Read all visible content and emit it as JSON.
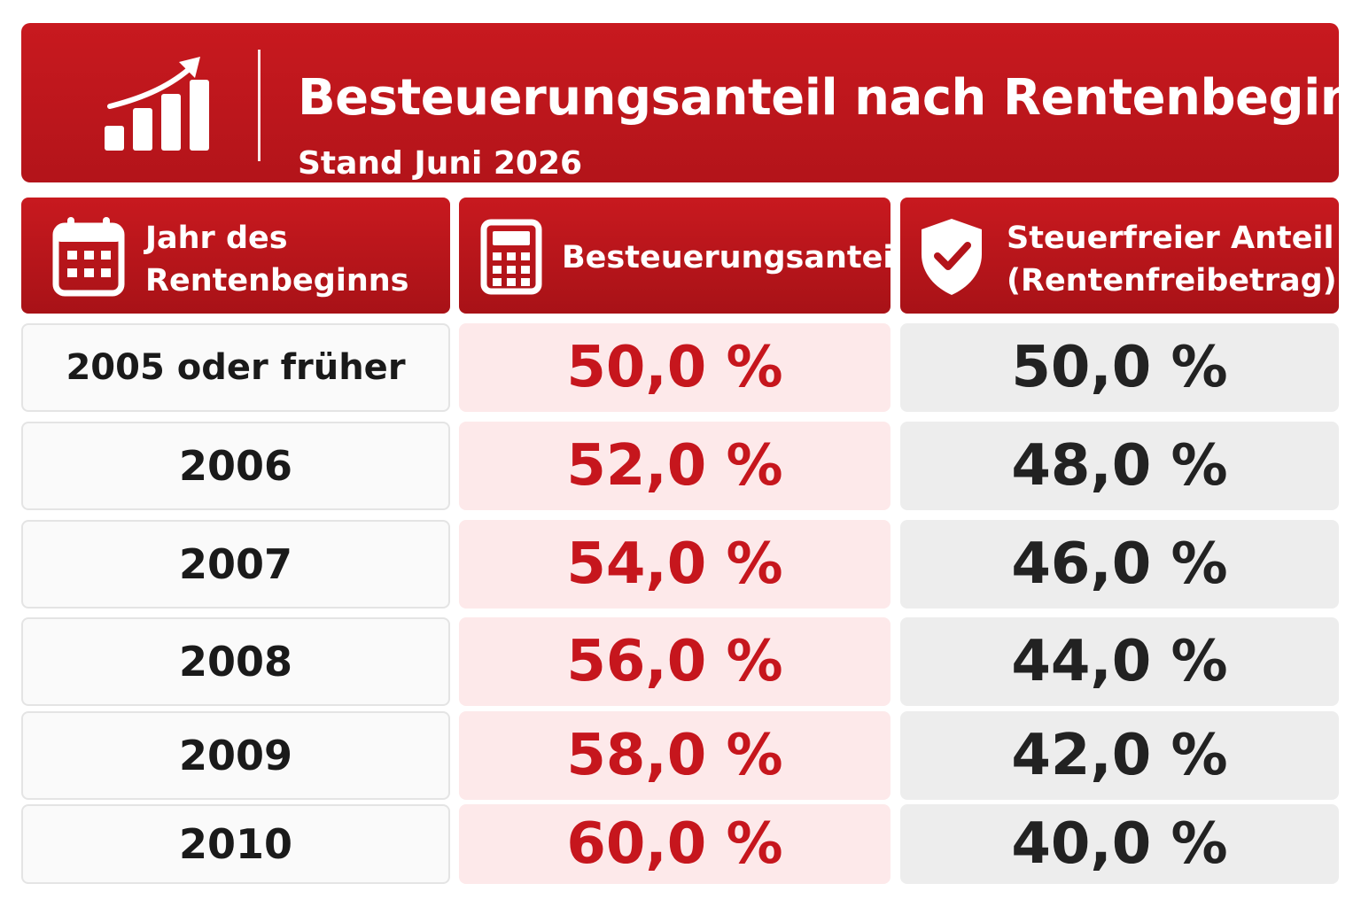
{
  "header": {
    "icon": "bar-chart-growth-icon",
    "title": "Besteuerungsanteil nach Rentenbeginn",
    "subtitle": "Stand Juni 2026"
  },
  "columns": [
    {
      "icon": "calendar-icon",
      "line1": "Jahr des",
      "line2": "Rentenbeginns"
    },
    {
      "icon": "calculator-icon",
      "line1": "Besteuerungsanteil",
      "line2": ""
    },
    {
      "icon": "shield-check-icon",
      "line1": "Steuerfreier Anteil",
      "line2": "(Rentenfreibetrag)"
    }
  ],
  "rows": [
    {
      "year": "2005 oder früher",
      "tax": "50,0 %",
      "free": "50,0 %"
    },
    {
      "year": "2006",
      "tax": "52,0 %",
      "free": "48,0 %"
    },
    {
      "year": "2007",
      "tax": "54,0 %",
      "free": "46,0 %"
    },
    {
      "year": "2008",
      "tax": "56,0 %",
      "free": "44,0 %"
    },
    {
      "year": "2009",
      "tax": "58,0 %",
      "free": "42,0 %"
    },
    {
      "year": "2010",
      "tax": "60,0 %",
      "free": "40,0 %"
    }
  ],
  "colors": {
    "accent": "#c6161d",
    "tax_bg": "#fde9ea",
    "free_bg": "#ededed"
  }
}
